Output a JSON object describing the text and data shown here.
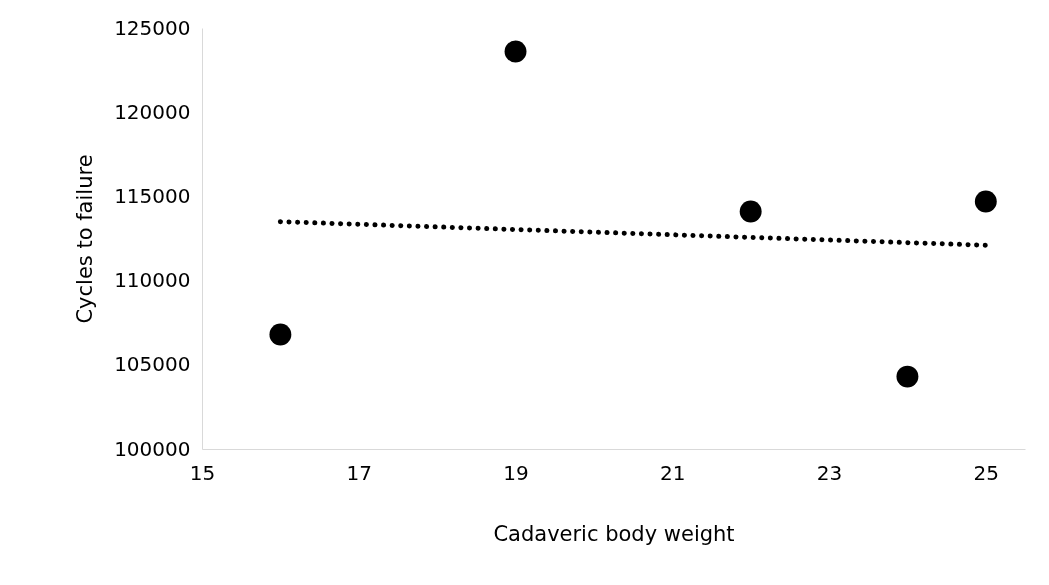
{
  "chart_data": {
    "type": "scatter",
    "xlabel": "Cadaveric body weight",
    "ylabel": "Cycles to failure",
    "xlim": [
      15,
      25.5
    ],
    "xticks": [
      15,
      17,
      19,
      21,
      23,
      25
    ],
    "ylim": [
      100000,
      125000
    ],
    "yticks": [
      100000,
      105000,
      110000,
      115000,
      120000,
      125000
    ],
    "series": [
      {
        "color": "#000000",
        "marker": "circle",
        "x": [
          16,
          19,
          22,
          24,
          25
        ],
        "values": [
          106800,
          123600,
          114100,
          104300,
          114700
        ]
      },
      {
        "type": "line",
        "color": "#000000",
        "line_style": "dotted",
        "x": [
          16,
          25
        ],
        "values": [
          113500,
          112100
        ]
      }
    ]
  }
}
